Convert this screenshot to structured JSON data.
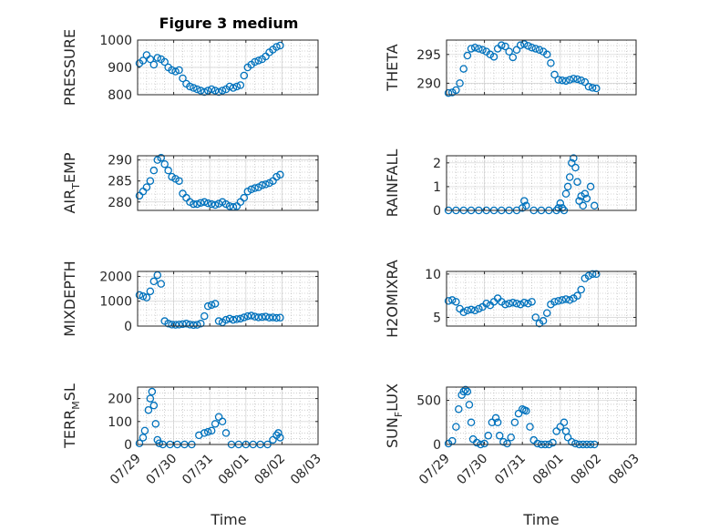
{
  "figure": {
    "title": "Figure 3 medium",
    "xlabel_left": "Time",
    "xlabel_right": "Time"
  },
  "colors": {
    "marker": "#0072BD",
    "axis": "#262626",
    "grid": "#b0b0b0"
  },
  "chart_data": [
    {
      "type": "scatter",
      "id": "pressure",
      "ylabel": "PRESSURE",
      "ylim": [
        800,
        1000
      ],
      "yticks": [
        800,
        900,
        1000
      ],
      "xlim": [
        "07/29",
        "08/03"
      ],
      "xticks": [
        "07/29",
        "07/30",
        "07/31",
        "08/01",
        "08/02",
        "08/03"
      ],
      "x_days": [
        0.05,
        0.15,
        0.25,
        0.35,
        0.45,
        0.55,
        0.65,
        0.75,
        0.85,
        0.95,
        1.05,
        1.15,
        1.25,
        1.35,
        1.45,
        1.55,
        1.65,
        1.75,
        1.85,
        1.95,
        2.05,
        2.15,
        2.25,
        2.35,
        2.45,
        2.55,
        2.65,
        2.75,
        2.85,
        2.95,
        3.05,
        3.15,
        3.25,
        3.35,
        3.45,
        3.55,
        3.65,
        3.75,
        3.85,
        3.95
      ],
      "y": [
        915,
        925,
        945,
        930,
        910,
        935,
        930,
        920,
        900,
        890,
        885,
        890,
        860,
        840,
        830,
        825,
        820,
        815,
        810,
        815,
        820,
        815,
        810,
        815,
        820,
        830,
        825,
        830,
        835,
        870,
        900,
        910,
        920,
        925,
        930,
        940,
        955,
        965,
        975,
        980
      ]
    },
    {
      "type": "scatter",
      "id": "theta",
      "ylabel": "THETA",
      "ylim": [
        288,
        297.5
      ],
      "yticks": [
        290,
        295
      ],
      "xlim": [
        "07/29",
        "08/03"
      ],
      "xticks": [
        "07/29",
        "07/30",
        "07/31",
        "08/01",
        "08/02",
        "08/03"
      ],
      "x_days": [
        0.05,
        0.15,
        0.25,
        0.35,
        0.45,
        0.55,
        0.65,
        0.75,
        0.85,
        0.95,
        1.05,
        1.15,
        1.25,
        1.35,
        1.45,
        1.55,
        1.65,
        1.75,
        1.85,
        1.95,
        2.05,
        2.15,
        2.25,
        2.35,
        2.45,
        2.55,
        2.65,
        2.75,
        2.85,
        2.95,
        3.05,
        3.15,
        3.25,
        3.35,
        3.45,
        3.55,
        3.65,
        3.75,
        3.85,
        3.95
      ],
      "y": [
        288.3,
        288.4,
        288.8,
        290,
        292.5,
        294.8,
        296,
        296.2,
        296,
        295.8,
        295.5,
        295,
        294.6,
        296,
        296.6,
        296.4,
        295.5,
        294.5,
        295.8,
        296.6,
        296.8,
        296.5,
        296.2,
        296,
        295.8,
        295.5,
        295,
        293.5,
        291.5,
        290.6,
        290.5,
        290.4,
        290.6,
        290.8,
        290.7,
        290.5,
        290.2,
        289.4,
        289.2,
        289.1
      ]
    },
    {
      "type": "scatter",
      "id": "air_temp",
      "ylabel": "AIR",
      "ylabel_sub": "T",
      "ylabel_rest": "EMP",
      "ylim": [
        278,
        291
      ],
      "yticks": [
        280,
        285,
        290
      ],
      "xlim": [
        "07/29",
        "08/03"
      ],
      "xticks": [
        "07/29",
        "07/30",
        "07/31",
        "08/01",
        "08/02",
        "08/03"
      ],
      "x_days": [
        0.05,
        0.15,
        0.25,
        0.35,
        0.45,
        0.55,
        0.65,
        0.75,
        0.85,
        0.95,
        1.05,
        1.15,
        1.25,
        1.35,
        1.45,
        1.55,
        1.65,
        1.75,
        1.85,
        1.95,
        2.05,
        2.15,
        2.25,
        2.35,
        2.45,
        2.55,
        2.65,
        2.75,
        2.85,
        2.95,
        3.05,
        3.15,
        3.25,
        3.35,
        3.45,
        3.55,
        3.65,
        3.75,
        3.85,
        3.95
      ],
      "y": [
        281.5,
        282.5,
        283.5,
        285,
        287.5,
        290,
        290.5,
        289,
        287.5,
        286,
        285.5,
        285,
        282,
        281,
        280,
        279.5,
        279.5,
        279.8,
        280,
        279.7,
        279.5,
        279.3,
        279.6,
        280,
        279.5,
        279,
        278.8,
        279,
        280,
        281,
        282.5,
        283,
        283.3,
        283.5,
        284,
        284.2,
        284.5,
        285,
        286,
        286.5
      ]
    },
    {
      "type": "scatter",
      "id": "rainfall",
      "ylabel": "RAINFALL",
      "ylim": [
        0,
        2.3
      ],
      "yticks": [
        0,
        1,
        2
      ],
      "xlim": [
        "07/29",
        "08/03"
      ],
      "xticks": [
        "07/29",
        "07/30",
        "07/31",
        "08/01",
        "08/02",
        "08/03"
      ],
      "x_days": [
        0.05,
        0.25,
        0.45,
        0.65,
        0.85,
        1.05,
        1.25,
        1.45,
        1.65,
        1.85,
        2.0,
        2.05,
        2.1,
        2.3,
        2.5,
        2.7,
        2.9,
        2.95,
        3.0,
        3.05,
        3.1,
        3.15,
        3.2,
        3.25,
        3.3,
        3.35,
        3.4,
        3.45,
        3.5,
        3.55,
        3.6,
        3.65,
        3.7,
        3.8,
        3.9
      ],
      "y": [
        0,
        0,
        0,
        0,
        0,
        0,
        0,
        0,
        0,
        0,
        0.1,
        0.4,
        0.2,
        0,
        0,
        0,
        0,
        0.1,
        0.3,
        0.1,
        0,
        0.7,
        1.0,
        1.4,
        2.0,
        2.2,
        1.8,
        1.2,
        0.4,
        0.6,
        0.2,
        0.7,
        0.5,
        1.0,
        0.2
      ]
    },
    {
      "type": "scatter",
      "id": "mixdepth",
      "ylabel": "MIXDEPTH",
      "ylim": [
        0,
        2200
      ],
      "yticks": [
        0,
        1000,
        2000
      ],
      "xlim": [
        "07/29",
        "08/03"
      ],
      "xticks": [
        "07/29",
        "07/30",
        "07/31",
        "08/01",
        "08/02",
        "08/03"
      ],
      "x_days": [
        0.05,
        0.15,
        0.25,
        0.35,
        0.45,
        0.55,
        0.65,
        0.75,
        0.85,
        0.95,
        1.05,
        1.15,
        1.25,
        1.35,
        1.45,
        1.55,
        1.65,
        1.75,
        1.85,
        1.95,
        2.05,
        2.15,
        2.25,
        2.35,
        2.45,
        2.55,
        2.65,
        2.75,
        2.85,
        2.95,
        3.05,
        3.15,
        3.25,
        3.35,
        3.45,
        3.55,
        3.65,
        3.75,
        3.85,
        3.95
      ],
      "y": [
        1250,
        1200,
        1150,
        1400,
        1800,
        2050,
        1700,
        200,
        100,
        60,
        50,
        60,
        80,
        100,
        60,
        40,
        50,
        100,
        400,
        800,
        850,
        900,
        200,
        150,
        250,
        300,
        250,
        280,
        300,
        350,
        400,
        420,
        380,
        350,
        360,
        380,
        340,
        350,
        330,
        340
      ]
    },
    {
      "type": "scatter",
      "id": "h2omixra",
      "ylabel": "H2OMIXRA",
      "ylim": [
        4,
        10.3
      ],
      "yticks": [
        5,
        10
      ],
      "xlim": [
        "07/29",
        "08/03"
      ],
      "xticks": [
        "07/29",
        "07/30",
        "07/31",
        "08/01",
        "08/02",
        "08/03"
      ],
      "x_days": [
        0.05,
        0.15,
        0.25,
        0.35,
        0.45,
        0.55,
        0.65,
        0.75,
        0.85,
        0.95,
        1.05,
        1.15,
        1.25,
        1.35,
        1.45,
        1.55,
        1.65,
        1.75,
        1.85,
        1.95,
        2.05,
        2.15,
        2.25,
        2.35,
        2.45,
        2.55,
        2.65,
        2.75,
        2.85,
        2.95,
        3.05,
        3.15,
        3.25,
        3.35,
        3.45,
        3.55,
        3.65,
        3.75,
        3.85,
        3.95
      ],
      "y": [
        6.9,
        7.0,
        6.8,
        6.0,
        5.6,
        5.8,
        5.9,
        5.8,
        6.0,
        6.2,
        6.6,
        6.4,
        6.8,
        7.2,
        6.8,
        6.5,
        6.6,
        6.7,
        6.6,
        6.5,
        6.7,
        6.6,
        6.8,
        5.0,
        4.3,
        4.6,
        5.5,
        6.5,
        6.8,
        6.9,
        7.0,
        7.1,
        7.0,
        7.2,
        7.5,
        8.2,
        9.5,
        9.8,
        10.0,
        10.0
      ]
    },
    {
      "type": "scatter",
      "id": "terr_msl",
      "ylabel": "TERR",
      "ylabel_sub": "M",
      "ylabel_rest": "SL",
      "ylim": [
        0,
        250
      ],
      "yticks": [
        0,
        100,
        200
      ],
      "xlim": [
        "07/29",
        "08/03"
      ],
      "xticks": [
        "07/29",
        "07/30",
        "07/31",
        "08/01",
        "08/02",
        "08/03"
      ],
      "x_days": [
        0.05,
        0.15,
        0.2,
        0.3,
        0.35,
        0.4,
        0.45,
        0.5,
        0.55,
        0.6,
        0.7,
        0.9,
        1.1,
        1.3,
        1.5,
        1.7,
        1.85,
        1.95,
        2.05,
        2.15,
        2.25,
        2.35,
        2.45,
        2.6,
        2.8,
        3.0,
        3.2,
        3.4,
        3.6,
        3.75,
        3.85,
        3.9,
        3.95
      ],
      "y": [
        5,
        30,
        60,
        150,
        200,
        230,
        170,
        90,
        20,
        5,
        0,
        0,
        0,
        0,
        0,
        40,
        50,
        55,
        60,
        90,
        120,
        100,
        50,
        0,
        0,
        0,
        0,
        0,
        0,
        20,
        40,
        50,
        30
      ]
    },
    {
      "type": "scatter",
      "id": "sun_flux",
      "ylabel": "SUN",
      "ylabel_sub": "F",
      "ylabel_rest": "LUX",
      "ylim": [
        0,
        650
      ],
      "yticks": [
        0,
        500
      ],
      "xlim": [
        "07/29",
        "08/03"
      ],
      "xticks": [
        "07/29",
        "07/30",
        "07/31",
        "08/01",
        "08/02",
        "08/03"
      ],
      "x_days": [
        0.05,
        0.15,
        0.25,
        0.32,
        0.4,
        0.45,
        0.5,
        0.55,
        0.6,
        0.65,
        0.7,
        0.8,
        0.9,
        1.0,
        1.1,
        1.2,
        1.3,
        1.35,
        1.4,
        1.5,
        1.6,
        1.7,
        1.8,
        1.9,
        2.0,
        2.05,
        2.1,
        2.2,
        2.3,
        2.4,
        2.5,
        2.6,
        2.7,
        2.8,
        2.9,
        3.0,
        3.1,
        3.15,
        3.2,
        3.3,
        3.4,
        3.5,
        3.6,
        3.7,
        3.8,
        3.9
      ],
      "y": [
        10,
        40,
        200,
        400,
        560,
        600,
        620,
        600,
        450,
        250,
        60,
        20,
        0,
        10,
        100,
        250,
        300,
        250,
        100,
        30,
        10,
        80,
        250,
        350,
        400,
        390,
        380,
        200,
        50,
        10,
        0,
        0,
        0,
        20,
        150,
        200,
        250,
        150,
        80,
        30,
        10,
        0,
        0,
        0,
        0,
        0
      ]
    }
  ]
}
